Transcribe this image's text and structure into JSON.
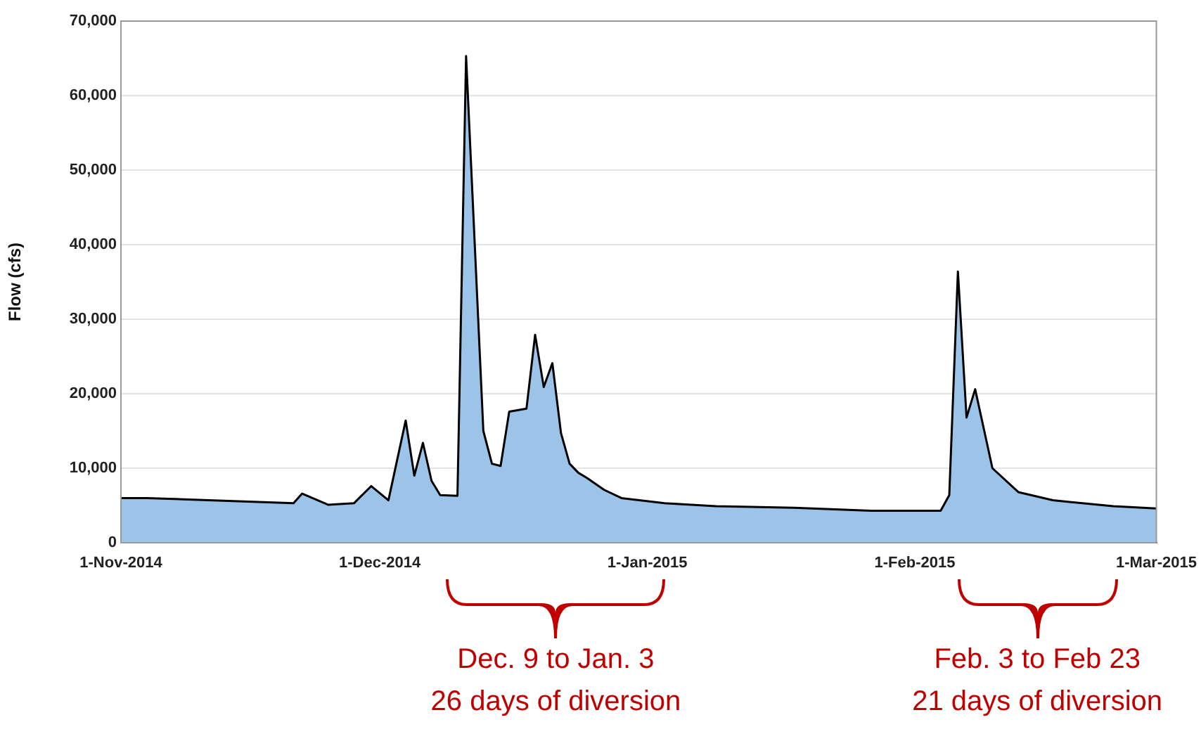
{
  "chart_data": {
    "type": "area",
    "ylabel": "Flow (cfs)",
    "x": [
      "2014-11-01",
      "2014-11-04",
      "2014-11-21",
      "2014-11-22",
      "2014-11-25",
      "2014-11-28",
      "2014-11-30",
      "2014-12-02",
      "2014-12-04",
      "2014-12-05",
      "2014-12-06",
      "2014-12-07",
      "2014-12-08",
      "2014-12-10",
      "2014-12-11",
      "2014-12-13",
      "2014-12-14",
      "2014-12-15",
      "2014-12-16",
      "2014-12-18",
      "2014-12-19",
      "2014-12-20",
      "2014-12-21",
      "2014-12-22",
      "2014-12-23",
      "2014-12-24",
      "2014-12-25",
      "2014-12-27",
      "2014-12-29",
      "2015-01-03",
      "2015-01-09",
      "2015-01-18",
      "2015-01-27",
      "2015-02-04",
      "2015-02-05",
      "2015-02-06",
      "2015-02-07",
      "2015-02-08",
      "2015-02-10",
      "2015-02-13",
      "2015-02-17",
      "2015-02-24",
      "2015-03-01"
    ],
    "series": [
      {
        "color": "#9cc3e8",
        "values": [
          6000,
          6000,
          5300,
          6600,
          5100,
          5300,
          7600,
          5700,
          16400,
          9000,
          13400,
          8300,
          6400,
          6300,
          65300,
          15000,
          10600,
          10300,
          17600,
          18000,
          27900,
          20900,
          24100,
          14700,
          10600,
          9400,
          8700,
          7100,
          6000,
          5300,
          4900,
          4700,
          4300,
          4300,
          6400,
          36400,
          16800,
          20600,
          10000,
          6800,
          5700,
          4900,
          4600
        ]
      }
    ],
    "xlim": [
      "2014-11-01",
      "2015-03-01"
    ],
    "xticks": [
      {
        "value": "2014-11-01",
        "label": "1-Nov-2014"
      },
      {
        "value": "2014-12-01",
        "label": "1-Dec-2014"
      },
      {
        "value": "2015-01-01",
        "label": "1-Jan-2015"
      },
      {
        "value": "2015-02-01",
        "label": "1-Feb-2015"
      },
      {
        "value": "2015-03-01",
        "label": "1-Mar-2015"
      }
    ],
    "ylim": [
      0,
      70000
    ],
    "yticks": [
      {
        "value": 0,
        "label": "0"
      },
      {
        "value": 10000,
        "label": "10,000"
      },
      {
        "value": 20000,
        "label": "20,000"
      },
      {
        "value": 30000,
        "label": "30,000"
      },
      {
        "value": 40000,
        "label": "40,000"
      },
      {
        "value": 50000,
        "label": "50,000"
      },
      {
        "value": 60000,
        "label": "60,000"
      },
      {
        "value": 70000,
        "label": "70,000"
      }
    ],
    "grid": "y",
    "annotations": [
      "Dec. 9 to Jan. 3\n26 days of diversion",
      "Feb. 3 to Feb 23\n21 days of diversion"
    ]
  }
}
